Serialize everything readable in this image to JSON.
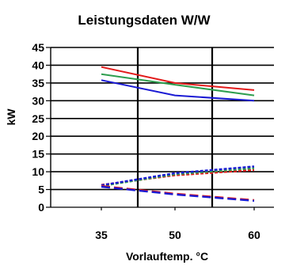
{
  "chart_data": {
    "type": "line",
    "title": "Leistungsdaten W/W",
    "xlabel": "Vorlauftemp. °C",
    "ylabel": "kW",
    "x": [
      35,
      50,
      60
    ],
    "xticks": [
      "35",
      "50",
      "60"
    ],
    "ylim": [
      0,
      45
    ],
    "yticks": [
      "0",
      "5",
      "10",
      "15",
      "20",
      "25",
      "30",
      "35",
      "40",
      "45"
    ],
    "grid": true,
    "legend": "none",
    "series": [
      {
        "color": "#e31b1b",
        "dash": "solid",
        "values": [
          39.5,
          35.0,
          33.0
        ]
      },
      {
        "color": "#2e9e4f",
        "dash": "solid",
        "values": [
          37.5,
          34.5,
          31.5
        ]
      },
      {
        "color": "#1a1ad4",
        "dash": "solid",
        "values": [
          35.8,
          31.5,
          30.0
        ]
      },
      {
        "color": "#e31b1b",
        "dash": "short",
        "values": [
          6.3,
          9.0,
          10.5
        ]
      },
      {
        "color": "#2e9e4f",
        "dash": "short",
        "values": [
          6.0,
          9.3,
          11.0
        ]
      },
      {
        "color": "#1a1ad4",
        "dash": "short",
        "values": [
          6.2,
          9.6,
          11.5
        ]
      },
      {
        "color": "#e31b1b",
        "dash": "long",
        "values": [
          6.0,
          3.8,
          2.0
        ]
      },
      {
        "color": "#1a1ad4",
        "dash": "long",
        "values": [
          5.8,
          3.6,
          1.8
        ]
      }
    ]
  }
}
